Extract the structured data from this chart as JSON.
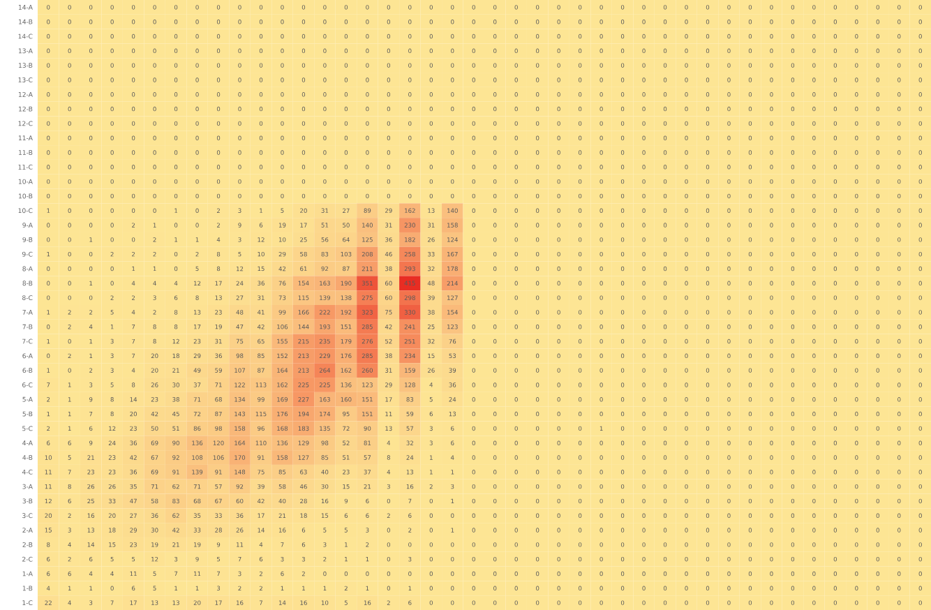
{
  "chart_data": {
    "type": "heatmap",
    "data_labels": true,
    "tick_labels": "y",
    "categories": [
      null,
      null,
      null,
      null,
      null,
      null,
      null,
      null,
      null,
      null,
      null,
      null,
      null,
      null,
      null,
      null,
      null,
      null,
      null,
      null,
      null,
      null,
      null,
      null,
      null,
      null,
      null,
      null,
      null,
      null,
      null,
      null,
      null,
      null,
      null,
      null,
      null,
      null,
      null,
      null,
      null,
      null
    ],
    "y_categories": [
      "14-A",
      "14-B",
      "14-C",
      "13-A",
      "13-B",
      "13-C",
      "12-A",
      "12-B",
      "12-C",
      "11-A",
      "11-B",
      "11-C",
      "10-A",
      "10-B",
      "10-C",
      "9-A",
      "9-B",
      "9-C",
      "8-A",
      "8-B",
      "8-C",
      "7-A",
      "7-B",
      "7-C",
      "6-A",
      "6-B",
      "6-C",
      "5-A",
      "5-B",
      "5-C",
      "4-A",
      "4-B",
      "4-C",
      "3-A",
      "3-B",
      "3-C",
      "2-A",
      "2-B",
      "2-C",
      "1-A",
      "1-B",
      "1-C"
    ],
    "cells": [
      [
        0,
        0,
        0,
        0,
        0,
        0,
        0,
        0,
        0,
        0,
        0,
        0,
        0,
        0,
        0,
        0,
        0,
        0,
        0,
        0,
        0,
        0,
        0,
        0,
        0,
        0,
        0,
        0,
        0,
        0,
        0,
        0,
        0,
        0,
        0,
        0,
        0,
        0,
        0,
        0,
        0,
        0
      ],
      [
        0,
        0,
        0,
        0,
        0,
        0,
        0,
        0,
        0,
        0,
        0,
        0,
        0,
        0,
        0,
        0,
        0,
        0,
        0,
        0,
        0,
        0,
        0,
        0,
        0,
        0,
        0,
        0,
        0,
        0,
        0,
        0,
        0,
        0,
        0,
        0,
        0,
        0,
        0,
        0,
        0,
        0
      ],
      [
        0,
        0,
        0,
        0,
        0,
        0,
        0,
        0,
        0,
        0,
        0,
        0,
        0,
        0,
        0,
        0,
        0,
        0,
        0,
        0,
        0,
        0,
        0,
        0,
        0,
        0,
        0,
        0,
        0,
        0,
        0,
        0,
        0,
        0,
        0,
        0,
        0,
        0,
        0,
        0,
        0,
        0
      ],
      [
        0,
        0,
        0,
        0,
        0,
        0,
        0,
        0,
        0,
        0,
        0,
        0,
        0,
        0,
        0,
        0,
        0,
        0,
        0,
        0,
        0,
        0,
        0,
        0,
        0,
        0,
        0,
        0,
        0,
        0,
        0,
        0,
        0,
        0,
        0,
        0,
        0,
        0,
        0,
        0,
        0,
        0
      ],
      [
        0,
        0,
        0,
        0,
        0,
        0,
        0,
        0,
        0,
        0,
        0,
        0,
        0,
        0,
        0,
        0,
        0,
        0,
        0,
        0,
        0,
        0,
        0,
        0,
        0,
        0,
        0,
        0,
        0,
        0,
        0,
        0,
        0,
        0,
        0,
        0,
        0,
        0,
        0,
        0,
        0,
        0
      ],
      [
        0,
        0,
        0,
        0,
        0,
        0,
        0,
        0,
        0,
        0,
        0,
        0,
        0,
        0,
        0,
        0,
        0,
        0,
        0,
        0,
        0,
        0,
        0,
        0,
        0,
        0,
        0,
        0,
        0,
        0,
        0,
        0,
        0,
        0,
        0,
        0,
        0,
        0,
        0,
        0,
        0,
        0
      ],
      [
        0,
        0,
        0,
        0,
        0,
        0,
        0,
        0,
        0,
        0,
        0,
        0,
        0,
        0,
        0,
        0,
        0,
        0,
        0,
        0,
        0,
        0,
        0,
        0,
        0,
        0,
        0,
        0,
        0,
        0,
        0,
        0,
        0,
        0,
        0,
        0,
        0,
        0,
        0,
        0,
        0,
        0
      ],
      [
        0,
        0,
        0,
        0,
        0,
        0,
        0,
        0,
        0,
        0,
        0,
        0,
        0,
        0,
        0,
        0,
        0,
        0,
        0,
        0,
        0,
        0,
        0,
        0,
        0,
        0,
        0,
        0,
        0,
        0,
        0,
        0,
        0,
        0,
        0,
        0,
        0,
        0,
        0,
        0,
        0,
        0
      ],
      [
        0,
        0,
        0,
        0,
        0,
        0,
        0,
        0,
        0,
        0,
        0,
        0,
        0,
        0,
        0,
        0,
        0,
        0,
        0,
        0,
        0,
        0,
        0,
        0,
        0,
        0,
        0,
        0,
        0,
        0,
        0,
        0,
        0,
        0,
        0,
        0,
        0,
        0,
        0,
        0,
        0,
        0
      ],
      [
        0,
        0,
        0,
        0,
        0,
        0,
        0,
        0,
        0,
        0,
        0,
        0,
        0,
        0,
        0,
        0,
        0,
        0,
        0,
        0,
        0,
        0,
        0,
        0,
        0,
        0,
        0,
        0,
        0,
        0,
        0,
        0,
        0,
        0,
        0,
        0,
        0,
        0,
        0,
        0,
        0,
        0
      ],
      [
        0,
        0,
        0,
        0,
        0,
        0,
        0,
        0,
        0,
        0,
        0,
        0,
        0,
        0,
        0,
        0,
        0,
        0,
        0,
        0,
        0,
        0,
        0,
        0,
        0,
        0,
        0,
        0,
        0,
        0,
        0,
        0,
        0,
        0,
        0,
        0,
        0,
        0,
        0,
        0,
        0,
        0
      ],
      [
        0,
        0,
        0,
        0,
        0,
        0,
        0,
        0,
        0,
        0,
        0,
        0,
        0,
        0,
        0,
        0,
        0,
        0,
        0,
        0,
        0,
        0,
        0,
        0,
        0,
        0,
        0,
        0,
        0,
        0,
        0,
        0,
        0,
        0,
        0,
        0,
        0,
        0,
        0,
        0,
        0,
        0
      ],
      [
        0,
        0,
        0,
        0,
        0,
        0,
        0,
        0,
        0,
        0,
        0,
        0,
        0,
        0,
        0,
        0,
        0,
        0,
        0,
        0,
        0,
        0,
        0,
        0,
        0,
        0,
        0,
        0,
        0,
        0,
        0,
        0,
        0,
        0,
        0,
        0,
        0,
        0,
        0,
        0,
        0,
        0
      ],
      [
        0,
        0,
        0,
        0,
        0,
        0,
        0,
        0,
        0,
        0,
        0,
        0,
        0,
        0,
        0,
        0,
        0,
        0,
        0,
        0,
        0,
        0,
        0,
        0,
        0,
        0,
        0,
        0,
        0,
        0,
        0,
        0,
        0,
        0,
        0,
        0,
        0,
        0,
        0,
        0,
        0,
        0
      ],
      [
        1,
        0,
        0,
        0,
        0,
        0,
        1,
        0,
        2,
        3,
        1,
        5,
        20,
        31,
        27,
        89,
        29,
        162,
        13,
        140,
        0,
        0,
        0,
        0,
        0,
        0,
        0,
        0,
        0,
        0,
        0,
        0,
        0,
        0,
        0,
        0,
        0,
        0,
        0,
        0,
        0,
        0
      ],
      [
        0,
        0,
        0,
        0,
        2,
        1,
        0,
        0,
        2,
        9,
        6,
        19,
        17,
        51,
        50,
        140,
        31,
        230,
        31,
        158,
        0,
        0,
        0,
        0,
        0,
        0,
        0,
        0,
        0,
        0,
        0,
        0,
        0,
        0,
        0,
        0,
        0,
        0,
        0,
        0,
        0,
        0
      ],
      [
        0,
        0,
        1,
        0,
        0,
        2,
        1,
        1,
        4,
        3,
        12,
        10,
        25,
        56,
        64,
        125,
        36,
        182,
        26,
        124,
        0,
        0,
        0,
        0,
        0,
        0,
        0,
        0,
        0,
        0,
        0,
        0,
        0,
        0,
        0,
        0,
        0,
        0,
        0,
        0,
        0,
        0
      ],
      [
        1,
        0,
        0,
        2,
        2,
        2,
        0,
        2,
        8,
        5,
        10,
        29,
        58,
        83,
        103,
        208,
        46,
        258,
        33,
        167,
        0,
        0,
        0,
        0,
        0,
        0,
        0,
        0,
        0,
        0,
        0,
        0,
        0,
        0,
        0,
        0,
        0,
        0,
        0,
        0,
        0,
        0
      ],
      [
        0,
        0,
        0,
        0,
        1,
        1,
        0,
        5,
        8,
        12,
        15,
        42,
        61,
        92,
        87,
        211,
        38,
        293,
        32,
        178,
        0,
        0,
        0,
        0,
        0,
        0,
        0,
        0,
        0,
        0,
        0,
        0,
        0,
        0,
        0,
        0,
        0,
        0,
        0,
        0,
        0,
        0
      ],
      [
        0,
        0,
        1,
        0,
        4,
        4,
        4,
        12,
        17,
        24,
        36,
        76,
        154,
        163,
        190,
        351,
        60,
        415,
        48,
        214,
        0,
        0,
        0,
        0,
        0,
        0,
        0,
        0,
        0,
        0,
        0,
        0,
        0,
        0,
        0,
        0,
        0,
        0,
        0,
        0,
        0,
        0
      ],
      [
        0,
        0,
        0,
        2,
        2,
        3,
        6,
        8,
        13,
        27,
        31,
        73,
        115,
        139,
        138,
        275,
        60,
        298,
        39,
        127,
        0,
        0,
        0,
        0,
        0,
        0,
        0,
        0,
        0,
        0,
        0,
        0,
        0,
        0,
        0,
        0,
        0,
        0,
        0,
        0,
        0,
        0
      ],
      [
        1,
        2,
        2,
        5,
        4,
        2,
        8,
        13,
        23,
        48,
        41,
        99,
        166,
        222,
        192,
        323,
        75,
        330,
        38,
        154,
        0,
        0,
        0,
        0,
        0,
        0,
        0,
        0,
        0,
        0,
        0,
        0,
        0,
        0,
        0,
        0,
        0,
        0,
        0,
        0,
        0,
        0
      ],
      [
        0,
        2,
        4,
        1,
        7,
        8,
        8,
        17,
        19,
        47,
        42,
        106,
        144,
        193,
        151,
        285,
        42,
        241,
        25,
        123,
        0,
        0,
        0,
        0,
        0,
        0,
        0,
        0,
        0,
        0,
        0,
        0,
        0,
        0,
        0,
        0,
        0,
        0,
        0,
        0,
        0,
        0
      ],
      [
        1,
        0,
        1,
        3,
        7,
        8,
        12,
        23,
        31,
        75,
        65,
        155,
        215,
        235,
        179,
        276,
        52,
        251,
        32,
        76,
        0,
        0,
        0,
        0,
        0,
        0,
        0,
        0,
        0,
        0,
        0,
        0,
        0,
        0,
        0,
        0,
        0,
        0,
        0,
        0,
        0,
        0
      ],
      [
        0,
        2,
        1,
        3,
        7,
        20,
        18,
        29,
        36,
        98,
        85,
        152,
        213,
        229,
        176,
        285,
        38,
        234,
        15,
        53,
        0,
        0,
        0,
        0,
        0,
        0,
        0,
        0,
        0,
        0,
        0,
        0,
        0,
        0,
        0,
        0,
        0,
        0,
        0,
        0,
        0,
        0
      ],
      [
        1,
        0,
        2,
        3,
        4,
        20,
        21,
        49,
        59,
        107,
        87,
        164,
        213,
        264,
        162,
        260,
        31,
        159,
        26,
        39,
        0,
        0,
        0,
        0,
        0,
        0,
        0,
        0,
        0,
        0,
        0,
        0,
        0,
        0,
        0,
        0,
        0,
        0,
        0,
        0,
        0,
        0
      ],
      [
        7,
        1,
        3,
        5,
        8,
        26,
        30,
        37,
        71,
        122,
        113,
        162,
        225,
        225,
        136,
        123,
        29,
        128,
        4,
        36,
        0,
        0,
        0,
        0,
        0,
        0,
        0,
        0,
        0,
        0,
        0,
        0,
        0,
        0,
        0,
        0,
        0,
        0,
        0,
        0,
        0,
        0
      ],
      [
        2,
        1,
        9,
        8,
        14,
        23,
        38,
        71,
        68,
        134,
        99,
        169,
        227,
        163,
        160,
        151,
        17,
        83,
        5,
        24,
        0,
        0,
        0,
        0,
        0,
        0,
        0,
        0,
        0,
        0,
        0,
        0,
        0,
        0,
        0,
        0,
        0,
        0,
        0,
        0,
        0,
        0
      ],
      [
        1,
        1,
        7,
        8,
        20,
        42,
        45,
        72,
        87,
        143,
        115,
        176,
        194,
        174,
        95,
        151,
        11,
        59,
        6,
        13,
        0,
        0,
        0,
        0,
        0,
        0,
        0,
        0,
        0,
        0,
        0,
        0,
        0,
        0,
        0,
        0,
        0,
        0,
        0,
        0,
        0,
        0
      ],
      [
        2,
        1,
        6,
        12,
        23,
        50,
        51,
        86,
        98,
        158,
        96,
        168,
        183,
        135,
        72,
        90,
        13,
        57,
        3,
        6,
        0,
        0,
        0,
        0,
        0,
        0,
        1,
        0,
        0,
        0,
        0,
        0,
        0,
        0,
        0,
        0,
        0,
        0,
        0,
        0,
        0,
        0
      ],
      [
        6,
        6,
        9,
        24,
        36,
        69,
        90,
        136,
        120,
        164,
        110,
        136,
        129,
        98,
        52,
        81,
        4,
        32,
        3,
        6,
        0,
        0,
        0,
        0,
        0,
        0,
        0,
        0,
        0,
        0,
        0,
        0,
        0,
        0,
        0,
        0,
        0,
        0,
        0,
        0,
        0,
        0
      ],
      [
        10,
        5,
        21,
        23,
        42,
        67,
        92,
        108,
        106,
        170,
        91,
        158,
        127,
        85,
        51,
        57,
        8,
        24,
        1,
        4,
        0,
        0,
        0,
        0,
        0,
        0,
        0,
        0,
        0,
        0,
        0,
        0,
        0,
        0,
        0,
        0,
        0,
        0,
        0,
        0,
        0,
        0
      ],
      [
        11,
        7,
        23,
        23,
        36,
        69,
        91,
        139,
        91,
        148,
        75,
        85,
        63,
        40,
        23,
        37,
        4,
        13,
        1,
        1,
        0,
        0,
        0,
        0,
        0,
        0,
        0,
        0,
        0,
        0,
        0,
        0,
        0,
        0,
        0,
        0,
        0,
        0,
        0,
        0,
        0,
        0
      ],
      [
        11,
        8,
        26,
        26,
        35,
        71,
        62,
        71,
        57,
        92,
        39,
        58,
        46,
        30,
        15,
        21,
        3,
        16,
        2,
        3,
        0,
        0,
        0,
        0,
        0,
        0,
        0,
        0,
        0,
        0,
        0,
        0,
        0,
        0,
        0,
        0,
        0,
        0,
        0,
        0,
        0,
        0
      ],
      [
        12,
        6,
        25,
        33,
        47,
        58,
        83,
        68,
        67,
        60,
        42,
        40,
        28,
        16,
        9,
        6,
        0,
        7,
        0,
        1,
        0,
        0,
        0,
        0,
        0,
        0,
        0,
        0,
        0,
        0,
        0,
        0,
        0,
        0,
        0,
        0,
        0,
        0,
        0,
        0,
        0,
        0
      ],
      [
        20,
        2,
        16,
        20,
        27,
        36,
        62,
        35,
        33,
        36,
        17,
        21,
        18,
        15,
        6,
        6,
        2,
        6,
        0,
        0,
        0,
        0,
        0,
        0,
        0,
        0,
        0,
        0,
        0,
        0,
        0,
        0,
        0,
        0,
        0,
        0,
        0,
        0,
        0,
        0,
        0,
        0
      ],
      [
        15,
        3,
        13,
        18,
        29,
        30,
        42,
        33,
        28,
        26,
        14,
        16,
        6,
        5,
        5,
        3,
        0,
        2,
        0,
        1,
        0,
        0,
        0,
        0,
        0,
        0,
        0,
        0,
        0,
        0,
        0,
        0,
        0,
        0,
        0,
        0,
        0,
        0,
        0,
        0,
        0,
        0
      ],
      [
        8,
        4,
        14,
        15,
        23,
        19,
        21,
        19,
        9,
        11,
        4,
        7,
        6,
        3,
        1,
        2,
        0,
        0,
        0,
        0,
        0,
        0,
        0,
        0,
        0,
        0,
        0,
        0,
        0,
        0,
        0,
        0,
        0,
        0,
        0,
        0,
        0,
        0,
        0,
        0,
        0,
        0
      ],
      [
        6,
        2,
        6,
        5,
        5,
        12,
        3,
        9,
        5,
        7,
        6,
        3,
        3,
        2,
        1,
        1,
        0,
        3,
        0,
        0,
        0,
        0,
        0,
        0,
        0,
        0,
        0,
        0,
        0,
        0,
        0,
        0,
        0,
        0,
        0,
        0,
        0,
        0,
        0,
        0,
        0,
        0
      ],
      [
        6,
        6,
        4,
        4,
        11,
        5,
        7,
        11,
        7,
        3,
        2,
        6,
        2,
        0,
        0,
        0,
        0,
        0,
        0,
        0,
        0,
        0,
        0,
        0,
        0,
        0,
        0,
        0,
        0,
        0,
        0,
        0,
        0,
        0,
        0,
        0,
        0,
        0,
        0,
        0,
        0,
        0
      ],
      [
        4,
        1,
        1,
        0,
        6,
        5,
        1,
        1,
        3,
        2,
        2,
        1,
        1,
        1,
        2,
        1,
        0,
        1,
        0,
        0,
        0,
        0,
        0,
        0,
        0,
        0,
        0,
        0,
        0,
        0,
        0,
        0,
        0,
        0,
        0,
        0,
        0,
        0,
        0,
        0,
        0,
        0
      ],
      [
        22,
        4,
        3,
        7,
        17,
        13,
        13,
        20,
        17,
        16,
        7,
        14,
        16,
        10,
        5,
        16,
        2,
        6,
        0,
        0,
        0,
        0,
        0,
        0,
        0,
        0,
        0,
        0,
        0,
        0,
        0,
        0,
        0,
        0,
        0,
        0,
        0,
        0,
        0,
        0,
        0,
        0
      ]
    ]
  }
}
